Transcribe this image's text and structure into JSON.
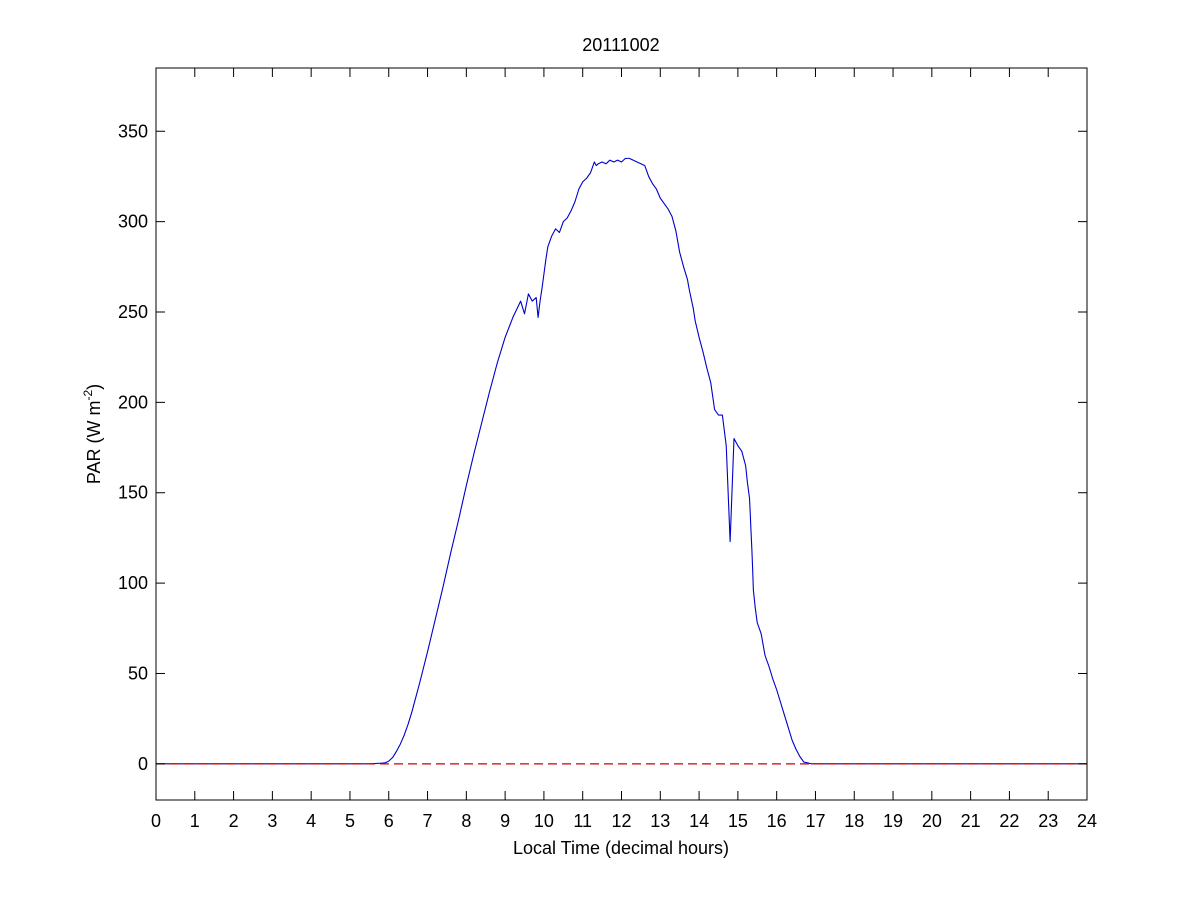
{
  "chart_data": {
    "type": "line",
    "title": "20111002",
    "xlabel": "Local Time (decimal hours)",
    "ylabel_main": "PAR (W m",
    "ylabel_exp": "-2",
    "ylabel_close": ")",
    "xlim": [
      0,
      24
    ],
    "ylim": [
      -20,
      385
    ],
    "xticks": [
      0,
      1,
      2,
      3,
      4,
      5,
      6,
      7,
      8,
      9,
      10,
      11,
      12,
      13,
      14,
      15,
      16,
      17,
      18,
      19,
      20,
      21,
      22,
      23,
      24
    ],
    "yticks": [
      0,
      50,
      100,
      150,
      200,
      250,
      300,
      350
    ],
    "grid": false,
    "legend": "none",
    "series": [
      {
        "style": "solid",
        "color": "#0000cc",
        "x": [
          0,
          5.5,
          5.9,
          6.0,
          6.1,
          6.2,
          6.3,
          6.4,
          6.5,
          6.6,
          6.8,
          7.0,
          7.2,
          7.4,
          7.6,
          7.8,
          8.0,
          8.2,
          8.4,
          8.6,
          8.8,
          9.0,
          9.2,
          9.4,
          9.5,
          9.6,
          9.7,
          9.8,
          9.85,
          9.9,
          9.95,
          10.0,
          10.05,
          10.1,
          10.2,
          10.3,
          10.4,
          10.5,
          10.6,
          10.7,
          10.8,
          10.9,
          11.0,
          11.1,
          11.2,
          11.25,
          11.3,
          11.35,
          11.4,
          11.5,
          11.6,
          11.7,
          11.8,
          11.9,
          12.0,
          12.1,
          12.2,
          12.3,
          12.4,
          12.5,
          12.6,
          12.7,
          12.8,
          12.9,
          13.0,
          13.1,
          13.2,
          13.3,
          13.4,
          13.5,
          13.6,
          13.7,
          13.75,
          13.8,
          13.85,
          13.9,
          14.0,
          14.1,
          14.2,
          14.3,
          14.4,
          14.5,
          14.6,
          14.7,
          14.8,
          14.9,
          15.0,
          15.1,
          15.2,
          15.25,
          15.3,
          15.32,
          15.34,
          15.36,
          15.38,
          15.4,
          15.45,
          15.5,
          15.6,
          15.7,
          15.8,
          15.9,
          16.0,
          16.1,
          16.2,
          16.3,
          16.4,
          16.5,
          16.6,
          16.7,
          16.8,
          16.9,
          17.0,
          17.2,
          17.4,
          17.6,
          17.8,
          17.9,
          18.0,
          18.1,
          24
        ],
        "y": [
          0,
          0,
          0.5,
          1.5,
          3.5,
          7,
          11,
          16,
          22,
          29,
          45,
          62,
          80,
          98,
          117,
          135,
          154,
          172,
          189,
          206,
          222,
          236,
          247,
          256,
          249,
          260,
          256,
          258,
          247,
          256,
          263,
          271,
          279,
          286,
          292,
          296,
          294,
          300,
          302,
          306,
          311,
          318,
          322,
          324,
          327,
          330,
          333,
          331,
          332,
          333,
          332,
          334,
          333,
          334,
          333,
          335,
          335,
          334,
          333,
          332,
          331,
          325,
          321,
          318,
          313,
          310,
          307,
          303,
          295,
          283,
          275,
          268,
          262,
          257,
          252,
          245,
          236,
          228,
          219,
          211,
          196,
          193,
          193,
          176,
          123,
          180,
          176,
          173,
          165,
          155,
          147,
          138,
          128,
          119,
          108,
          96,
          86,
          78,
          72,
          60,
          54,
          47,
          41,
          34,
          27,
          20,
          13,
          8,
          4,
          1,
          0.5,
          0,
          0,
          0,
          0,
          0,
          0,
          0,
          0,
          0,
          0
        ]
      },
      {
        "style": "dashed",
        "color": "#cc0000",
        "x": [
          0,
          24
        ],
        "y": [
          0,
          0
        ]
      }
    ]
  }
}
